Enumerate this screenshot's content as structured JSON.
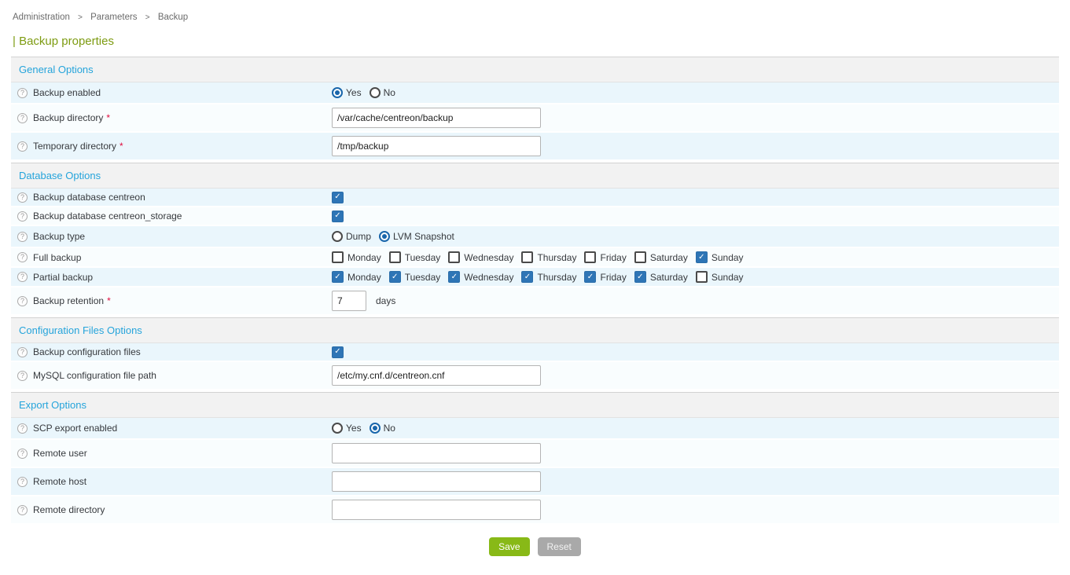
{
  "breadcrumb": {
    "items": [
      "Administration",
      "Parameters",
      "Backup"
    ],
    "separator": ">"
  },
  "page": {
    "title": "| Backup properties"
  },
  "colors": {
    "section_title_blue": "#25a4db",
    "page_title_green": "#7d9b11",
    "row_odd_blue": "#eaf6fc",
    "row_even": "#f9fdfe",
    "checkbox_checked_blue": "#2e75b6",
    "radio_selected_blue": "#1966ab",
    "required_red": "#e00b3d",
    "save_button_green": "#88b917",
    "reset_button_gray": "#a9a9a9"
  },
  "help_icon_glyph": "?",
  "form": {
    "sections": [
      {
        "title": "General Options",
        "rows": [
          {
            "label": "Backup enabled",
            "required": false,
            "control": {
              "type": "radio",
              "options": [
                {
                  "label": "Yes",
                  "selected": true
                },
                {
                  "label": "No",
                  "selected": false
                }
              ]
            }
          },
          {
            "label": "Backup directory",
            "required": true,
            "control": {
              "type": "text",
              "value": "/var/cache/centreon/backup",
              "size": "normal"
            }
          },
          {
            "label": "Temporary directory",
            "required": true,
            "control": {
              "type": "text",
              "value": "/tmp/backup",
              "size": "normal"
            }
          }
        ]
      },
      {
        "title": "Database Options",
        "rows": [
          {
            "label": "Backup database centreon",
            "required": false,
            "control": {
              "type": "checkbox",
              "checked": true
            }
          },
          {
            "label": "Backup database centreon_storage",
            "required": false,
            "control": {
              "type": "checkbox",
              "checked": true
            }
          },
          {
            "label": "Backup type",
            "required": false,
            "control": {
              "type": "radio",
              "options": [
                {
                  "label": "Dump",
                  "selected": false
                },
                {
                  "label": "LVM Snapshot",
                  "selected": true
                }
              ]
            }
          },
          {
            "label": "Full backup",
            "required": false,
            "control": {
              "type": "checkgroup",
              "options": [
                {
                  "label": "Monday",
                  "checked": false
                },
                {
                  "label": "Tuesday",
                  "checked": false
                },
                {
                  "label": "Wednesday",
                  "checked": false
                },
                {
                  "label": "Thursday",
                  "checked": false
                },
                {
                  "label": "Friday",
                  "checked": false
                },
                {
                  "label": "Saturday",
                  "checked": false
                },
                {
                  "label": "Sunday",
                  "checked": true
                }
              ]
            }
          },
          {
            "label": "Partial backup",
            "required": false,
            "control": {
              "type": "checkgroup",
              "options": [
                {
                  "label": "Monday",
                  "checked": true
                },
                {
                  "label": "Tuesday",
                  "checked": true
                },
                {
                  "label": "Wednesday",
                  "checked": true
                },
                {
                  "label": "Thursday",
                  "checked": true
                },
                {
                  "label": "Friday",
                  "checked": true
                },
                {
                  "label": "Saturday",
                  "checked": true
                },
                {
                  "label": "Sunday",
                  "checked": false
                }
              ]
            }
          },
          {
            "label": "Backup retention",
            "required": true,
            "control": {
              "type": "text",
              "value": "7",
              "size": "small",
              "suffix": "days"
            }
          }
        ]
      },
      {
        "title": "Configuration Files Options",
        "rows": [
          {
            "label": "Backup configuration files",
            "required": false,
            "control": {
              "type": "checkbox",
              "checked": true
            }
          },
          {
            "label": "MySQL configuration file path",
            "required": false,
            "control": {
              "type": "text",
              "value": "/etc/my.cnf.d/centreon.cnf",
              "size": "normal"
            }
          }
        ]
      },
      {
        "title": "Export Options",
        "rows": [
          {
            "label": "SCP export enabled",
            "required": false,
            "control": {
              "type": "radio",
              "options": [
                {
                  "label": "Yes",
                  "selected": false
                },
                {
                  "label": "No",
                  "selected": true
                }
              ]
            }
          },
          {
            "label": "Remote user",
            "required": false,
            "control": {
              "type": "text",
              "value": "",
              "size": "normal"
            }
          },
          {
            "label": "Remote host",
            "required": false,
            "control": {
              "type": "text",
              "value": "",
              "size": "normal"
            }
          },
          {
            "label": "Remote directory",
            "required": false,
            "control": {
              "type": "text",
              "value": "",
              "size": "normal"
            }
          }
        ]
      }
    ]
  },
  "buttons": {
    "save": "Save",
    "reset": "Reset"
  }
}
